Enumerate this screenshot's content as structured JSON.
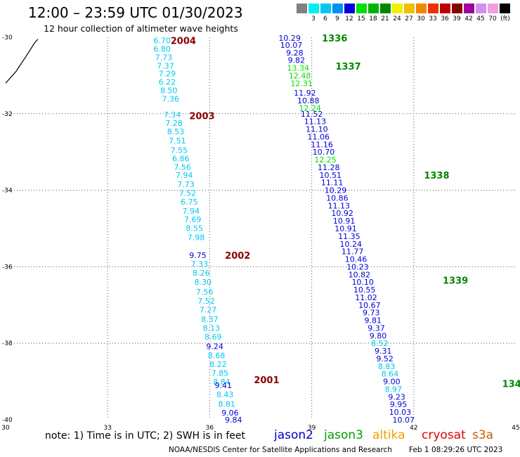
{
  "title": "12:00 – 23:59 UTC 01/30/2023",
  "subtitle": "12 hour collection of altimeter wave heights",
  "legend": {
    "unit": "(ft)",
    "bins": [
      {
        "label": "",
        "color": "#808080"
      },
      {
        "label": "3",
        "color": "#00f0f0"
      },
      {
        "label": "6",
        "color": "#00c8f0"
      },
      {
        "label": "9",
        "color": "#0090f0"
      },
      {
        "label": "12",
        "color": "#0000d8"
      },
      {
        "label": "15",
        "color": "#00e000"
      },
      {
        "label": "18",
        "color": "#00b400"
      },
      {
        "label": "21",
        "color": "#008800"
      },
      {
        "label": "24",
        "color": "#f0f000"
      },
      {
        "label": "27",
        "color": "#f0c000"
      },
      {
        "label": "30",
        "color": "#f08800"
      },
      {
        "label": "33",
        "color": "#f03000"
      },
      {
        "label": "36",
        "color": "#c00000"
      },
      {
        "label": "39",
        "color": "#880000"
      },
      {
        "label": "42",
        "color": "#a000a0"
      },
      {
        "label": "45",
        "color": "#d090f0"
      },
      {
        "label": "70",
        "color": "#f0a0e0"
      },
      {
        "label": "",
        "color": "#000000"
      }
    ]
  },
  "note": "note:  1) Time is in UTC; 2) SWH is in feet",
  "satellites": [
    {
      "name": "jason2",
      "color": "#0000cc"
    },
    {
      "name": "jason3",
      "color": "#00a000"
    },
    {
      "name": "altika",
      "color": "#f0a000"
    },
    {
      "name": "cryosat",
      "color": "#e00000"
    },
    {
      "name": "s3a",
      "color": "#c06000"
    }
  ],
  "credit": "NOAA/NESDIS Center for Satellite Applications and Research",
  "timestamp": "Feb  1 08:29:26 UTC 2023",
  "chart_data": {
    "type": "scatter",
    "xlabel": "",
    "ylabel": "",
    "xlim": [
      30,
      45
    ],
    "ylim": [
      -40,
      -30
    ],
    "x_ticks": [
      "30",
      "33",
      "36",
      "39",
      "42",
      "45"
    ],
    "y_ticks": [
      "-30",
      "-32",
      "-34",
      "-36",
      "-38",
      "-40"
    ],
    "grid": true,
    "coastline": [
      [
        30.0,
        -31.2
      ],
      [
        30.3,
        -30.9
      ],
      [
        30.6,
        -30.5
      ],
      [
        30.85,
        -30.15
      ],
      [
        30.95,
        -30.05
      ]
    ],
    "pass_labels": [
      {
        "text": "2004",
        "x": 34.85,
        "y": -30.08,
        "color": "#880000"
      },
      {
        "text": "2003",
        "x": 35.4,
        "y": -32.05,
        "color": "#880000"
      },
      {
        "text": "2002",
        "x": 36.45,
        "y": -35.7,
        "color": "#880000"
      },
      {
        "text": "2001",
        "x": 37.3,
        "y": -38.95,
        "color": "#880000"
      },
      {
        "text": "1336",
        "x": 39.3,
        "y": -30.02,
        "color": "#008800"
      },
      {
        "text": "1337",
        "x": 39.7,
        "y": -30.75,
        "color": "#008800"
      },
      {
        "text": "1338",
        "x": 42.3,
        "y": -33.6,
        "color": "#008800"
      },
      {
        "text": "1339",
        "x": 42.85,
        "y": -36.35,
        "color": "#008800"
      },
      {
        "text": "134",
        "x": 44.6,
        "y": -39.05,
        "color": "#008800"
      }
    ],
    "points": [
      {
        "x": 34.6,
        "y": -30.08,
        "v": "6.70",
        "c": "#00c8f0"
      },
      {
        "x": 34.6,
        "y": -30.3,
        "v": "6.80",
        "c": "#00c8f0"
      },
      {
        "x": 34.65,
        "y": -30.52,
        "v": "7.73",
        "c": "#00c8f0"
      },
      {
        "x": 34.7,
        "y": -30.74,
        "v": "7.37",
        "c": "#00c8f0"
      },
      {
        "x": 34.75,
        "y": -30.95,
        "v": "7.29",
        "c": "#00c8f0"
      },
      {
        "x": 34.75,
        "y": -31.17,
        "v": "6.22",
        "c": "#00c8f0"
      },
      {
        "x": 34.8,
        "y": -31.39,
        "v": "8.50",
        "c": "#00c8f0"
      },
      {
        "x": 34.85,
        "y": -31.61,
        "v": "7.36",
        "c": "#00c8f0"
      },
      {
        "x": 34.9,
        "y": -32.02,
        "v": "7.34",
        "c": "#00c8f0"
      },
      {
        "x": 34.95,
        "y": -32.24,
        "v": "7.28",
        "c": "#00c8f0"
      },
      {
        "x": 35.0,
        "y": -32.46,
        "v": "8.53",
        "c": "#00c8f0"
      },
      {
        "x": 35.05,
        "y": -32.7,
        "v": "7.51",
        "c": "#00c8f0"
      },
      {
        "x": 35.1,
        "y": -32.95,
        "v": "7.55",
        "c": "#00c8f0"
      },
      {
        "x": 35.15,
        "y": -33.17,
        "v": "6.86",
        "c": "#00c8f0"
      },
      {
        "x": 35.2,
        "y": -33.39,
        "v": "7.56",
        "c": "#00c8f0"
      },
      {
        "x": 35.25,
        "y": -33.6,
        "v": "7.94",
        "c": "#00c8f0"
      },
      {
        "x": 35.3,
        "y": -33.84,
        "v": "7.73",
        "c": "#00c8f0"
      },
      {
        "x": 35.35,
        "y": -34.07,
        "v": "7.52",
        "c": "#00c8f0"
      },
      {
        "x": 35.4,
        "y": -34.3,
        "v": "6.75",
        "c": "#00c8f0"
      },
      {
        "x": 35.45,
        "y": -34.54,
        "v": "7.94",
        "c": "#00c8f0"
      },
      {
        "x": 35.5,
        "y": -34.76,
        "v": "7.69",
        "c": "#00c8f0"
      },
      {
        "x": 35.55,
        "y": -34.99,
        "v": "8.55",
        "c": "#00c8f0"
      },
      {
        "x": 35.6,
        "y": -35.23,
        "v": "7.98",
        "c": "#00c8f0"
      },
      {
        "x": 35.65,
        "y": -35.7,
        "v": "9.75",
        "c": "#0000d8"
      },
      {
        "x": 35.7,
        "y": -35.93,
        "v": "7.33",
        "c": "#00c8f0"
      },
      {
        "x": 35.75,
        "y": -36.16,
        "v": "8.26",
        "c": "#00c8f0"
      },
      {
        "x": 35.8,
        "y": -36.4,
        "v": "8.30",
        "c": "#00c8f0"
      },
      {
        "x": 35.85,
        "y": -36.65,
        "v": "7.56",
        "c": "#00c8f0"
      },
      {
        "x": 35.9,
        "y": -36.89,
        "v": "7.52",
        "c": "#00c8f0"
      },
      {
        "x": 35.95,
        "y": -37.12,
        "v": "7.27",
        "c": "#00c8f0"
      },
      {
        "x": 36.0,
        "y": -37.37,
        "v": "8.37",
        "c": "#00c8f0"
      },
      {
        "x": 36.05,
        "y": -37.6,
        "v": "8.13",
        "c": "#00c8f0"
      },
      {
        "x": 36.1,
        "y": -37.83,
        "v": "8.69",
        "c": "#00c8f0"
      },
      {
        "x": 36.15,
        "y": -38.08,
        "v": "9.24",
        "c": "#0000d8"
      },
      {
        "x": 36.2,
        "y": -38.32,
        "v": "8.68",
        "c": "#00c8f0"
      },
      {
        "x": 36.25,
        "y": -38.55,
        "v": "8.22",
        "c": "#00c8f0"
      },
      {
        "x": 36.3,
        "y": -38.78,
        "v": "7.85",
        "c": "#00c8f0"
      },
      {
        "x": 36.35,
        "y": -39.01,
        "v": "8.84",
        "c": "#00c8f0"
      },
      {
        "x": 36.4,
        "y": -39.1,
        "v": "9.41",
        "c": "#0000d8"
      },
      {
        "x": 36.45,
        "y": -39.34,
        "v": "8.43",
        "c": "#00c8f0"
      },
      {
        "x": 36.5,
        "y": -39.59,
        "v": "8.81",
        "c": "#00c8f0"
      },
      {
        "x": 36.6,
        "y": -39.82,
        "v": "9.06",
        "c": "#0000d8"
      },
      {
        "x": 36.7,
        "y": -40.0,
        "v": "9.84",
        "c": "#0000d8"
      },
      {
        "x": 38.35,
        "y": -30.02,
        "v": "10.29",
        "c": "#0000d8"
      },
      {
        "x": 38.4,
        "y": -30.2,
        "v": "10.07",
        "c": "#0000d8"
      },
      {
        "x": 38.5,
        "y": -30.4,
        "v": "9.28",
        "c": "#0000d8"
      },
      {
        "x": 38.55,
        "y": -30.6,
        "v": "9.82",
        "c": "#0000d8"
      },
      {
        "x": 38.6,
        "y": -30.8,
        "v": "13.34",
        "c": "#00e000"
      },
      {
        "x": 38.65,
        "y": -31.0,
        "v": "12.48",
        "c": "#00e000"
      },
      {
        "x": 38.7,
        "y": -31.2,
        "v": "12.31",
        "c": "#00e000"
      },
      {
        "x": 38.8,
        "y": -31.45,
        "v": "11.92",
        "c": "#0000d8"
      },
      {
        "x": 38.9,
        "y": -31.65,
        "v": "10.88",
        "c": "#0000d8"
      },
      {
        "x": 38.95,
        "y": -31.85,
        "v": "12.24",
        "c": "#00e000"
      },
      {
        "x": 39.0,
        "y": -32.0,
        "v": "11.52",
        "c": "#0000d8"
      },
      {
        "x": 39.1,
        "y": -32.2,
        "v": "11.13",
        "c": "#0000d8"
      },
      {
        "x": 39.15,
        "y": -32.4,
        "v": "11.10",
        "c": "#0000d8"
      },
      {
        "x": 39.2,
        "y": -32.6,
        "v": "11.06",
        "c": "#0000d8"
      },
      {
        "x": 39.3,
        "y": -32.8,
        "v": "11.16",
        "c": "#0000d8"
      },
      {
        "x": 39.35,
        "y": -33.0,
        "v": "10.70",
        "c": "#0000d8"
      },
      {
        "x": 39.4,
        "y": -33.2,
        "v": "12.25",
        "c": "#00e000"
      },
      {
        "x": 39.5,
        "y": -33.4,
        "v": "11.28",
        "c": "#0000d8"
      },
      {
        "x": 39.55,
        "y": -33.6,
        "v": "10.51",
        "c": "#0000d8"
      },
      {
        "x": 39.6,
        "y": -33.8,
        "v": "11.11",
        "c": "#0000d8"
      },
      {
        "x": 39.7,
        "y": -34.0,
        "v": "10.29",
        "c": "#0000d8"
      },
      {
        "x": 39.75,
        "y": -34.2,
        "v": "10.86",
        "c": "#0000d8"
      },
      {
        "x": 39.8,
        "y": -34.4,
        "v": "11.13",
        "c": "#0000d8"
      },
      {
        "x": 39.9,
        "y": -34.6,
        "v": "10.92",
        "c": "#0000d8"
      },
      {
        "x": 39.95,
        "y": -34.8,
        "v": "10.91",
        "c": "#0000d8"
      },
      {
        "x": 40.0,
        "y": -35.0,
        "v": "10.91",
        "c": "#0000d8"
      },
      {
        "x": 40.1,
        "y": -35.2,
        "v": "11.35",
        "c": "#0000d8"
      },
      {
        "x": 40.15,
        "y": -35.4,
        "v": "10.24",
        "c": "#0000d8"
      },
      {
        "x": 40.2,
        "y": -35.6,
        "v": "11.77",
        "c": "#0000d8"
      },
      {
        "x": 40.3,
        "y": -35.8,
        "v": "10.46",
        "c": "#0000d8"
      },
      {
        "x": 40.35,
        "y": -36.0,
        "v": "10.23",
        "c": "#0000d8"
      },
      {
        "x": 40.4,
        "y": -36.2,
        "v": "10.82",
        "c": "#0000d8"
      },
      {
        "x": 40.5,
        "y": -36.4,
        "v": "10.10",
        "c": "#0000d8"
      },
      {
        "x": 40.55,
        "y": -36.6,
        "v": "10.55",
        "c": "#0000d8"
      },
      {
        "x": 40.6,
        "y": -36.8,
        "v": "11.02",
        "c": "#0000d8"
      },
      {
        "x": 40.7,
        "y": -37.0,
        "v": "10.67",
        "c": "#0000d8"
      },
      {
        "x": 40.75,
        "y": -37.2,
        "v": "9.73",
        "c": "#0000d8"
      },
      {
        "x": 40.8,
        "y": -37.4,
        "v": "9.81",
        "c": "#0000d8"
      },
      {
        "x": 40.9,
        "y": -37.6,
        "v": "9.37",
        "c": "#0000d8"
      },
      {
        "x": 40.95,
        "y": -37.8,
        "v": "9.80",
        "c": "#0000d8"
      },
      {
        "x": 41.0,
        "y": -38.0,
        "v": "8.52",
        "c": "#00c8f0"
      },
      {
        "x": 41.1,
        "y": -38.2,
        "v": "9.31",
        "c": "#0000d8"
      },
      {
        "x": 41.15,
        "y": -38.4,
        "v": "9.52",
        "c": "#0000d8"
      },
      {
        "x": 41.2,
        "y": -38.6,
        "v": "8.83",
        "c": "#00c8f0"
      },
      {
        "x": 41.3,
        "y": -38.8,
        "v": "8.64",
        "c": "#00c8f0"
      },
      {
        "x": 41.35,
        "y": -39.0,
        "v": "9.00",
        "c": "#0000d8"
      },
      {
        "x": 41.4,
        "y": -39.2,
        "v": "8.97",
        "c": "#00c8f0"
      },
      {
        "x": 41.5,
        "y": -39.4,
        "v": "9.23",
        "c": "#0000d8"
      },
      {
        "x": 41.55,
        "y": -39.6,
        "v": "9.95",
        "c": "#0000d8"
      },
      {
        "x": 41.6,
        "y": -39.8,
        "v": "10.03",
        "c": "#0000d8"
      },
      {
        "x": 41.7,
        "y": -40.0,
        "v": "10.07",
        "c": "#0000d8"
      }
    ]
  }
}
